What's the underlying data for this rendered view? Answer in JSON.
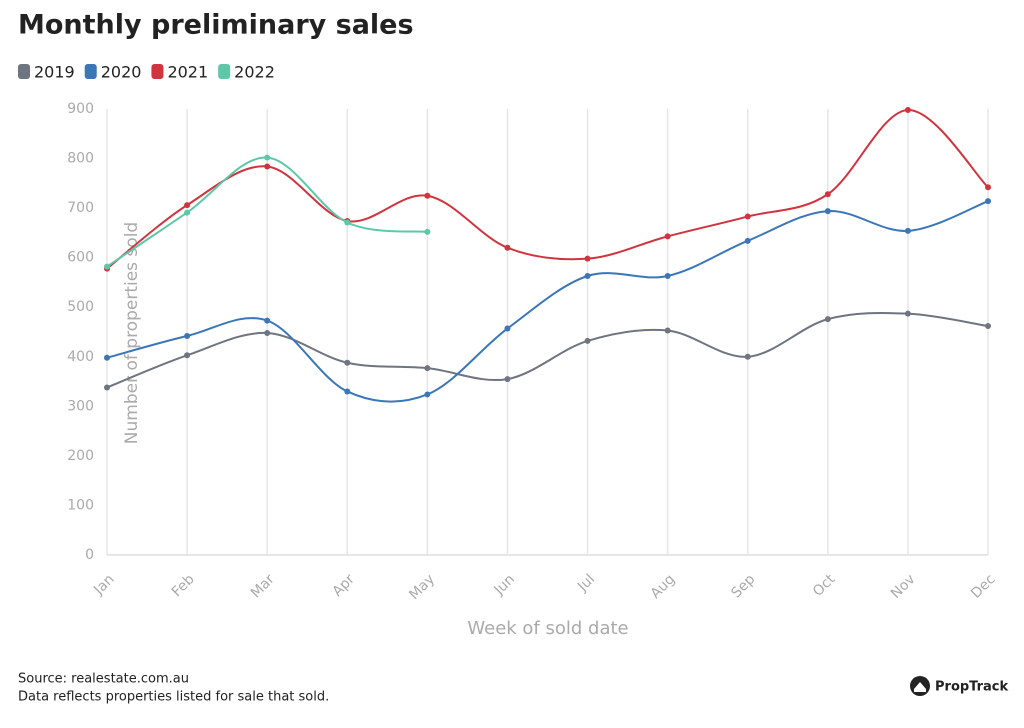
{
  "chart_data": {
    "type": "line",
    "title": "Monthly preliminary sales",
    "x_label": "Week of sold date",
    "y_label": "Number of properties sold",
    "categories": [
      "Jan",
      "Feb",
      "Mar",
      "Apr",
      "May",
      "Jun",
      "Jul",
      "Aug",
      "Sep",
      "Oct",
      "Nov",
      "Dec"
    ],
    "series": [
      {
        "name": "2019",
        "color": "#6e7580",
        "values": [
          338,
          403,
          448,
          388,
          377,
          355,
          432,
          453,
          400,
          476,
          487,
          462
        ]
      },
      {
        "name": "2020",
        "color": "#3a76b8",
        "values": [
          398,
          442,
          473,
          330,
          324,
          457,
          563,
          563,
          634,
          694,
          654,
          714
        ]
      },
      {
        "name": "2021",
        "color": "#d1343f",
        "values": [
          578,
          706,
          784,
          674,
          725,
          620,
          598,
          643,
          683,
          728,
          898,
          742
        ]
      },
      {
        "name": "2022",
        "color": "#5ec7a7",
        "values": [
          582,
          691,
          802,
          671,
          652,
          null,
          null,
          null,
          null,
          null,
          null,
          null
        ]
      }
    ],
    "ylim": [
      0,
      900
    ],
    "yticks": [
      0,
      100,
      200,
      300,
      400,
      500,
      600,
      700,
      800,
      900
    ],
    "grid": "x",
    "legend": "top-left",
    "source": "Source: realestate.com.au",
    "note": "Data reflects properties listed for sale that sold.",
    "logo": "PropTrack"
  }
}
